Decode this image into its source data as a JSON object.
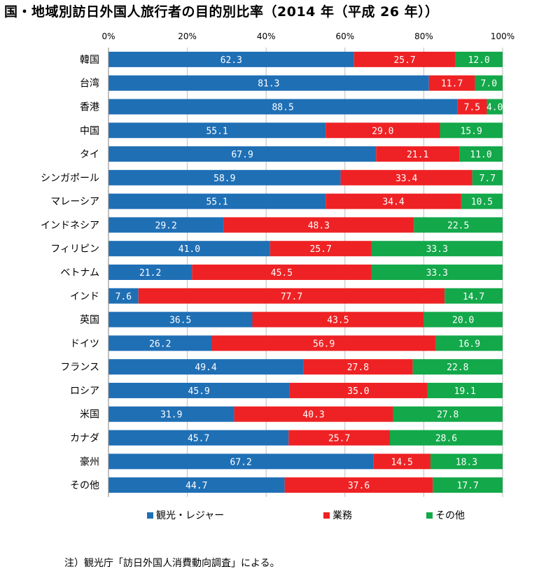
{
  "title": "国・地域別訪日外国人旅行者の目的別比率（2014 年（平成 26 年））",
  "note": "注）観光庁「訪日外国人消費動向調査」による。",
  "chart_data": {
    "type": "bar",
    "orientation": "horizontal",
    "stacked": true,
    "title": "国・地域別訪日外国人旅行者の目的別比率（2014 年（平成 26 年））",
    "xlabel": "",
    "ylabel": "",
    "xlim": [
      0,
      100
    ],
    "ticks": [
      "0%",
      "20%",
      "40%",
      "60%",
      "80%",
      "100%"
    ],
    "tick_values": [
      0,
      20,
      40,
      60,
      80,
      100
    ],
    "grid": true,
    "legend_position": "bottom",
    "categories": [
      "韓国",
      "台湾",
      "香港",
      "中国",
      "タイ",
      "シンガポール",
      "マレーシア",
      "インドネシア",
      "フィリピン",
      "ベトナム",
      "インド",
      "英国",
      "ドイツ",
      "フランス",
      "ロシア",
      "米国",
      "カナダ",
      "豪州",
      "その他"
    ],
    "series": [
      {
        "name": "観光・レジャー",
        "color": "#1f6fb5",
        "values": [
          62.3,
          81.3,
          88.5,
          55.1,
          67.9,
          58.9,
          55.1,
          29.2,
          41.0,
          21.2,
          7.6,
          36.5,
          26.2,
          49.4,
          45.9,
          31.9,
          45.7,
          67.2,
          44.7
        ],
        "labels": [
          "62.3",
          "81.3",
          "88.5",
          "55.1",
          "67.9",
          "58.9",
          "55.1",
          "29.2",
          "41.0",
          "21.2",
          "7.6",
          "36.5",
          "26.2",
          "49.4",
          "45.9",
          "31.9",
          "45.7",
          "67.2",
          "44.7"
        ]
      },
      {
        "name": "業務",
        "color": "#ee2224",
        "values": [
          25.7,
          11.7,
          7.5,
          29.0,
          21.1,
          33.4,
          34.4,
          48.3,
          25.7,
          45.5,
          77.7,
          43.5,
          56.9,
          27.8,
          35.0,
          40.3,
          25.7,
          14.5,
          37.6
        ],
        "labels": [
          "25.7",
          "11.7",
          "7.5",
          "29.0",
          "21.1",
          "33.4",
          "34.4",
          "48.3",
          "25.7",
          "45.5",
          "77.7",
          "43.5",
          "56.9",
          "27.8",
          "35.0",
          "40.3",
          "25.7",
          "14.5",
          "37.6"
        ]
      },
      {
        "name": "その他",
        "color": "#13a84a",
        "values": [
          12.0,
          7.0,
          4.0,
          15.9,
          11.0,
          7.7,
          10.5,
          22.5,
          33.3,
          33.3,
          14.7,
          20.0,
          16.9,
          22.8,
          19.1,
          27.8,
          28.6,
          18.3,
          17.7
        ],
        "labels": [
          "12.0",
          "7.0",
          "4.0",
          "15.9",
          "11.0",
          "7.7",
          "10.5",
          "22.5",
          "33.3",
          "33.3",
          "14.7",
          "20.0",
          "16.9",
          "22.8",
          "19.1",
          "27.8",
          "28.6",
          "18.3",
          "17.7"
        ]
      }
    ]
  }
}
